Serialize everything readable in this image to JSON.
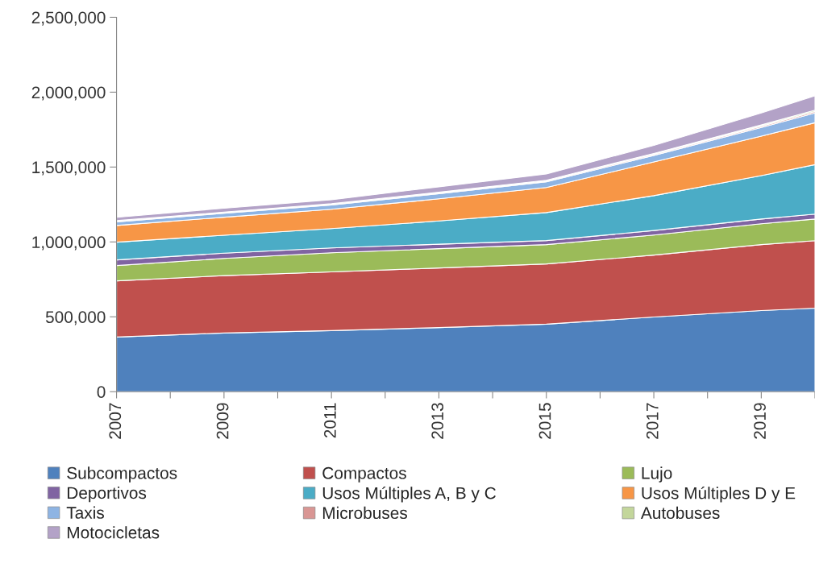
{
  "chart_data": {
    "type": "area",
    "stacked": true,
    "x": [
      2007,
      2009,
      2011,
      2013,
      2015,
      2017,
      2019,
      2020
    ],
    "series": [
      {
        "name": "Subcompactos",
        "color": "#4f81bd",
        "values": [
          365000,
          392000,
          408000,
          428000,
          451000,
          499000,
          542000,
          558000
        ]
      },
      {
        "name": "Compactos",
        "color": "#c0504d",
        "values": [
          375000,
          383000,
          392000,
          398000,
          402000,
          413000,
          440000,
          450000
        ]
      },
      {
        "name": "Lujo",
        "color": "#9bbb59",
        "values": [
          102000,
          115000,
          128000,
          129000,
          129000,
          134000,
          139000,
          145000
        ]
      },
      {
        "name": "Deportivos",
        "color": "#8064a2",
        "values": [
          38000,
          35000,
          32000,
          30000,
          27000,
          30000,
          32000,
          33000
        ]
      },
      {
        "name": "Usos Múltiples A, B y C",
        "color": "#4bacc6",
        "values": [
          118000,
          120000,
          129000,
          155000,
          187000,
          233000,
          290000,
          330000
        ]
      },
      {
        "name": "Usos Múltiples D y E",
        "color": "#f79646",
        "values": [
          112000,
          120000,
          129000,
          148000,
          167000,
          225000,
          263000,
          280000
        ]
      },
      {
        "name": "Taxis",
        "color": "#8eb4e3",
        "values": [
          24000,
          26000,
          28000,
          34000,
          38000,
          44000,
          58000,
          65000
        ]
      },
      {
        "name": "Microbuses",
        "color": "#d99694",
        "values": [
          4000,
          4000,
          5000,
          5000,
          6000,
          7000,
          9000,
          10000
        ]
      },
      {
        "name": "Autobuses",
        "color": "#c3d69b",
        "values": [
          4000,
          4000,
          4000,
          5000,
          5000,
          6000,
          8000,
          9000
        ]
      },
      {
        "name": "Motocicletas",
        "color": "#b3a2c7",
        "values": [
          22000,
          26000,
          27000,
          36000,
          42000,
          53000,
          80000,
          96000
        ]
      }
    ],
    "xlim": [
      2007,
      2020
    ],
    "xticks": [
      2007,
      {
        "value": 2008,
        "label": null
      },
      2009,
      {
        "value": 2010,
        "label": null
      },
      2011,
      {
        "value": 2012,
        "label": null
      },
      2013,
      {
        "value": 2014,
        "label": null
      },
      2015,
      {
        "value": 2016,
        "label": null
      },
      2017,
      {
        "value": 2018,
        "label": null
      },
      2019,
      {
        "value": 2020,
        "label": null
      }
    ],
    "ylim": [
      0,
      2500000
    ],
    "yticks": [
      0,
      {
        "value": 500000,
        "label": "500,000"
      },
      {
        "value": 1000000,
        "label": "1,000,000"
      },
      {
        "value": 1500000,
        "label": "1,500,000"
      },
      {
        "value": 2000000,
        "label": "2,000,000"
      },
      {
        "value": 2500000,
        "label": "2,500,000"
      }
    ],
    "grid": false,
    "legend": "bottom"
  }
}
